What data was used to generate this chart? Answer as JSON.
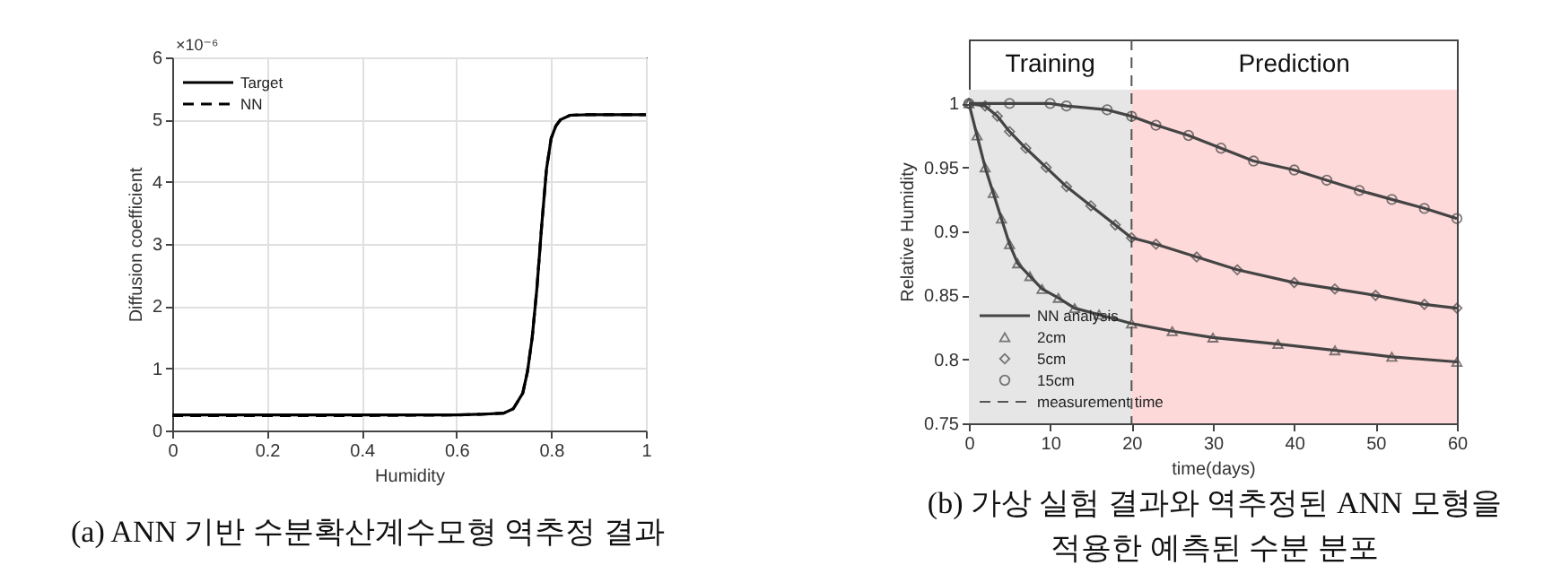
{
  "chart_data": [
    {
      "type": "line",
      "title": "(a) ANN 기반 수분확산계수모형 역추정 결과",
      "xlabel": "Humidity",
      "ylabel": "Diffusion coefficient",
      "annotations": [
        "×10⁻⁶"
      ],
      "xlim": [
        0,
        1
      ],
      "ylim": [
        0,
        6
      ],
      "xticks": [
        0,
        0.2,
        0.4,
        0.6,
        0.8,
        1
      ],
      "yticks": [
        0,
        1,
        2,
        3,
        4,
        5,
        6
      ],
      "grid": true,
      "legend": "top left",
      "x": [
        0,
        0.2,
        0.4,
        0.6,
        0.65,
        0.7,
        0.72,
        0.74,
        0.75,
        0.76,
        0.77,
        0.78,
        0.79,
        0.8,
        0.81,
        0.82,
        0.84,
        0.88,
        0.94,
        1
      ],
      "series": [
        {
          "name": "Target",
          "color": "#000000",
          "line_style": "solid",
          "values": [
            0.25,
            0.25,
            0.25,
            0.25,
            0.26,
            0.28,
            0.35,
            0.6,
            0.95,
            1.5,
            2.3,
            3.3,
            4.2,
            4.7,
            4.9,
            5.0,
            5.07,
            5.08,
            5.08,
            5.08
          ]
        },
        {
          "name": "NN",
          "color": "#000000",
          "line_style": "dashed",
          "values": [
            0.24,
            0.24,
            0.24,
            0.25,
            0.26,
            0.28,
            0.35,
            0.6,
            0.95,
            1.5,
            2.3,
            3.3,
            4.2,
            4.7,
            4.9,
            5.0,
            5.07,
            5.08,
            5.08,
            5.08
          ]
        }
      ]
    },
    {
      "type": "line",
      "title": "(b) 가상 실험 결과와 역추정된 ANN 모형을 적용한 예측된 수분 분포",
      "xlabel": "time(days)",
      "ylabel": "Relative Humidity",
      "xlim": [
        0,
        60
      ],
      "ylim": [
        0.75,
        1.05
      ],
      "xticks": [
        0,
        10,
        20,
        30,
        40,
        50,
        60
      ],
      "yticks": [
        0.75,
        0.8,
        0.85,
        0.9,
        0.95,
        1
      ],
      "legend": "bottom left",
      "bands": [
        {
          "axis": "x",
          "from": 0,
          "to": 20,
          "label": "Training",
          "color": "#e6e6e6"
        },
        {
          "axis": "x",
          "from": 20,
          "to": 60,
          "label": "Prediction",
          "color": "#fdd9d9"
        }
      ],
      "ref_lines": [
        {
          "axis": "x",
          "value": 20,
          "label": "measurement time",
          "color": "#555555",
          "line_style": "dashed"
        }
      ],
      "series": [
        {
          "name": "NN analysis",
          "type": "line",
          "color": "#444444",
          "x": [
            0,
            1,
            2,
            3,
            4,
            5,
            6,
            7.5,
            9,
            11,
            13,
            16,
            20,
            25,
            30,
            38,
            45,
            52,
            60
          ],
          "values": [
            1.0,
            0.975,
            0.95,
            0.93,
            0.91,
            0.89,
            0.875,
            0.865,
            0.855,
            0.848,
            0.84,
            0.835,
            0.828,
            0.822,
            0.817,
            0.812,
            0.807,
            0.802,
            0.798
          ]
        },
        {
          "type": "line",
          "color": "#444444",
          "x": [
            0,
            2,
            3.5,
            5,
            7,
            9.5,
            12,
            15,
            18,
            20,
            23,
            28,
            33,
            40,
            45,
            50,
            56,
            60
          ],
          "values": [
            1.0,
            0.998,
            0.99,
            0.978,
            0.965,
            0.95,
            0.935,
            0.92,
            0.905,
            0.895,
            0.89,
            0.88,
            0.87,
            0.86,
            0.855,
            0.85,
            0.843,
            0.84
          ]
        },
        {
          "type": "line",
          "color": "#444444",
          "x": [
            0,
            5,
            10,
            12,
            17,
            20,
            23,
            27,
            31,
            35,
            40,
            44,
            48,
            52,
            56,
            60
          ],
          "values": [
            1.0,
            1.0,
            1.0,
            0.998,
            0.995,
            0.99,
            0.983,
            0.975,
            0.965,
            0.955,
            0.948,
            0.94,
            0.932,
            0.925,
            0.918,
            0.91
          ]
        },
        {
          "name": "2cm",
          "type": "scatter",
          "marker": "triangle",
          "color": "#444444",
          "x": [
            0,
            1,
            2,
            3,
            4,
            5,
            6,
            7.5,
            9,
            11,
            13,
            16,
            20,
            25,
            30,
            38,
            45,
            52,
            60
          ],
          "values": [
            1.0,
            0.975,
            0.95,
            0.93,
            0.91,
            0.89,
            0.875,
            0.865,
            0.855,
            0.848,
            0.84,
            0.835,
            0.828,
            0.822,
            0.817,
            0.812,
            0.807,
            0.802,
            0.798
          ]
        },
        {
          "name": "5cm",
          "type": "scatter",
          "marker": "diamond",
          "color": "#444444",
          "x": [
            0,
            2,
            3.5,
            5,
            7,
            9.5,
            12,
            15,
            18,
            20,
            23,
            28,
            33,
            40,
            45,
            50,
            56,
            60
          ],
          "values": [
            1.0,
            0.998,
            0.99,
            0.978,
            0.965,
            0.95,
            0.935,
            0.92,
            0.905,
            0.895,
            0.89,
            0.88,
            0.87,
            0.86,
            0.855,
            0.85,
            0.843,
            0.84
          ]
        },
        {
          "name": "15cm",
          "type": "scatter",
          "marker": "circle",
          "color": "#444444",
          "x": [
            0,
            5,
            10,
            12,
            17,
            20,
            23,
            27,
            31,
            35,
            40,
            44,
            48,
            52,
            56,
            60
          ],
          "values": [
            1.0,
            1.0,
            1.0,
            0.998,
            0.995,
            0.99,
            0.983,
            0.975,
            0.965,
            0.955,
            0.948,
            0.94,
            0.932,
            0.925,
            0.918,
            0.91
          ]
        }
      ]
    }
  ]
}
